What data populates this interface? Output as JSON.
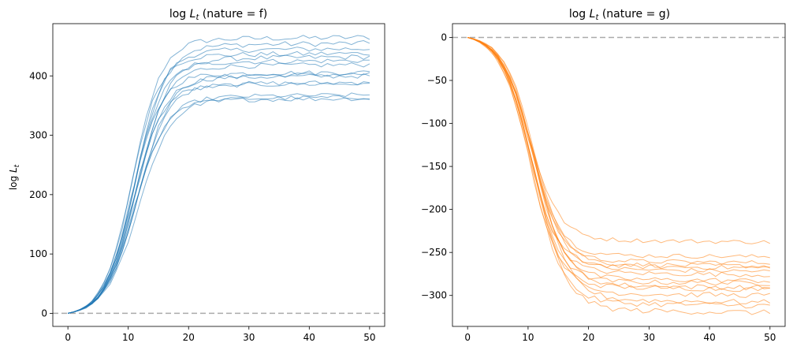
{
  "chart_data": [
    {
      "type": "line",
      "title_prefix": "log",
      "title_var": "L",
      "title_sub": "t",
      "title_suffix": " (nature = f)",
      "ylabel_prefix": "log",
      "ylabel_var": "L",
      "ylabel_sub": "t",
      "xlabel": "",
      "xlim": [
        -2.5,
        52.5
      ],
      "ylim": [
        -22,
        488
      ],
      "xticks": [
        0,
        10,
        20,
        30,
        40,
        50
      ],
      "yticks": [
        0,
        100,
        200,
        300,
        400
      ],
      "grid": false,
      "legend": false,
      "reference_line": 0,
      "color": "#1f77b4",
      "n_steps": 50,
      "series": [
        {
          "final": 465,
          "mid": 10.8,
          "k": 0.42
        },
        {
          "final": 455,
          "mid": 11.2,
          "k": 0.4
        },
        {
          "final": 446,
          "mid": 11.0,
          "k": 0.41
        },
        {
          "final": 438,
          "mid": 10.5,
          "k": 0.43
        },
        {
          "final": 432,
          "mid": 11.5,
          "k": 0.39
        },
        {
          "final": 426,
          "mid": 10.9,
          "k": 0.41
        },
        {
          "final": 419,
          "mid": 11.3,
          "k": 0.4
        },
        {
          "final": 406,
          "mid": 10.7,
          "k": 0.42
        },
        {
          "final": 403,
          "mid": 11.6,
          "k": 0.38
        },
        {
          "final": 400,
          "mid": 11.1,
          "k": 0.4
        },
        {
          "final": 389,
          "mid": 11.4,
          "k": 0.39
        },
        {
          "final": 387,
          "mid": 10.8,
          "k": 0.41
        },
        {
          "final": 368,
          "mid": 11.2,
          "k": 0.38
        },
        {
          "final": 364,
          "mid": 11.7,
          "k": 0.37
        },
        {
          "final": 362,
          "mid": 11.0,
          "k": 0.39
        }
      ]
    },
    {
      "type": "line",
      "title_prefix": "log",
      "title_var": "L",
      "title_sub": "t",
      "title_suffix": " (nature = g)",
      "xlabel": "",
      "xlim": [
        -2.5,
        52.5
      ],
      "ylim": [
        -336,
        16
      ],
      "xticks": [
        0,
        10,
        20,
        30,
        40,
        50
      ],
      "yticks": [
        0,
        -50,
        -100,
        -150,
        -200,
        -250,
        -300
      ],
      "grid": false,
      "legend": false,
      "reference_line": 0,
      "color": "#ff7f0e",
      "n_steps": 50,
      "series": [
        {
          "final": -238,
          "mid": 10.2,
          "k": 0.4
        },
        {
          "final": -255,
          "mid": 10.6,
          "k": 0.42
        },
        {
          "final": -262,
          "mid": 10.4,
          "k": 0.41
        },
        {
          "final": -266,
          "mid": 11.0,
          "k": 0.4
        },
        {
          "final": -268,
          "mid": 10.1,
          "k": 0.43
        },
        {
          "final": -272,
          "mid": 10.8,
          "k": 0.39
        },
        {
          "final": -276,
          "mid": 10.3,
          "k": 0.41
        },
        {
          "final": -283,
          "mid": 10.9,
          "k": 0.4
        },
        {
          "final": -286,
          "mid": 10.5,
          "k": 0.42
        },
        {
          "final": -291,
          "mid": 11.1,
          "k": 0.38
        },
        {
          "final": -293,
          "mid": 10.2,
          "k": 0.41
        },
        {
          "final": -300,
          "mid": 10.7,
          "k": 0.4
        },
        {
          "final": -308,
          "mid": 11.3,
          "k": 0.37
        },
        {
          "final": -312,
          "mid": 10.6,
          "k": 0.39
        },
        {
          "final": -320,
          "mid": 11.0,
          "k": 0.38
        }
      ]
    }
  ]
}
